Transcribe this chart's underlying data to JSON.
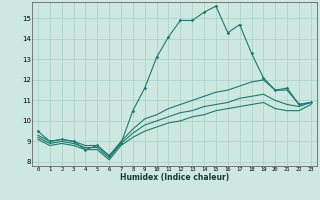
{
  "xlabel": "Humidex (Indice chaleur)",
  "ylabel": "",
  "bg_color": "#cce8e0",
  "grid_color": "#aacfc8",
  "line_color": "#1a7a6e",
  "xlim": [
    -0.5,
    23.5
  ],
  "ylim": [
    7.8,
    15.8
  ],
  "xticks": [
    0,
    1,
    2,
    3,
    4,
    5,
    6,
    7,
    8,
    9,
    10,
    11,
    12,
    13,
    14,
    15,
    16,
    17,
    18,
    19,
    20,
    21,
    22,
    23
  ],
  "yticks": [
    8,
    9,
    10,
    11,
    12,
    13,
    14,
    15
  ],
  "series1_x": [
    0,
    1,
    2,
    3,
    4,
    5,
    6,
    7,
    8,
    9,
    10,
    11,
    12,
    13,
    14,
    15,
    16,
    17,
    18,
    19,
    20,
    21,
    22,
    23
  ],
  "series1_y": [
    9.5,
    9.0,
    9.1,
    9.0,
    8.6,
    8.8,
    8.3,
    8.9,
    10.5,
    11.6,
    13.1,
    14.1,
    14.9,
    14.9,
    15.3,
    15.6,
    14.3,
    14.7,
    13.3,
    12.1,
    11.5,
    11.6,
    10.8,
    10.9
  ],
  "series2_x": [
    0,
    1,
    2,
    3,
    4,
    5,
    6,
    7,
    8,
    9,
    10,
    11,
    12,
    13,
    14,
    15,
    16,
    17,
    18,
    19,
    20,
    21,
    22,
    23
  ],
  "series2_y": [
    9.3,
    9.0,
    9.1,
    9.0,
    8.8,
    8.8,
    8.3,
    9.0,
    9.6,
    10.1,
    10.3,
    10.6,
    10.8,
    11.0,
    11.2,
    11.4,
    11.5,
    11.7,
    11.9,
    12.0,
    11.5,
    11.5,
    10.8,
    10.9
  ],
  "series3_x": [
    0,
    1,
    2,
    3,
    4,
    5,
    6,
    7,
    8,
    9,
    10,
    11,
    12,
    13,
    14,
    15,
    16,
    17,
    18,
    19,
    20,
    21,
    22,
    23
  ],
  "series3_y": [
    9.2,
    8.9,
    9.0,
    8.9,
    8.7,
    8.7,
    8.2,
    8.9,
    9.4,
    9.8,
    10.0,
    10.2,
    10.4,
    10.5,
    10.7,
    10.8,
    10.9,
    11.1,
    11.2,
    11.3,
    11.0,
    10.8,
    10.7,
    10.9
  ],
  "series4_x": [
    0,
    1,
    2,
    3,
    4,
    5,
    6,
    7,
    8,
    9,
    10,
    11,
    12,
    13,
    14,
    15,
    16,
    17,
    18,
    19,
    20,
    21,
    22,
    23
  ],
  "series4_y": [
    9.1,
    8.8,
    8.9,
    8.8,
    8.6,
    8.6,
    8.1,
    8.8,
    9.2,
    9.5,
    9.7,
    9.9,
    10.0,
    10.2,
    10.3,
    10.5,
    10.6,
    10.7,
    10.8,
    10.9,
    10.6,
    10.5,
    10.5,
    10.8
  ]
}
